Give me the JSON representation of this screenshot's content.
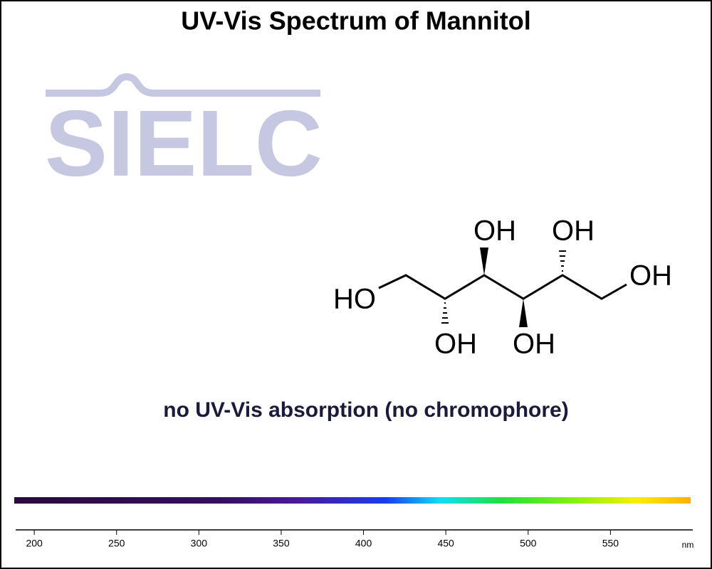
{
  "chart_data": {
    "type": "spectrum",
    "title": "UV-Vis Spectrum of Mannitol",
    "logo": "SIELC",
    "annotation": "no UV-Vis absorption (no chromophore)",
    "structure_labels": [
      "HO",
      "OH",
      "OH",
      "OH",
      "OH",
      "OH"
    ],
    "xlim": [
      190,
      600
    ],
    "xticks": [
      200,
      250,
      300,
      350,
      400,
      450,
      500,
      550
    ],
    "x_unit": "nm"
  }
}
